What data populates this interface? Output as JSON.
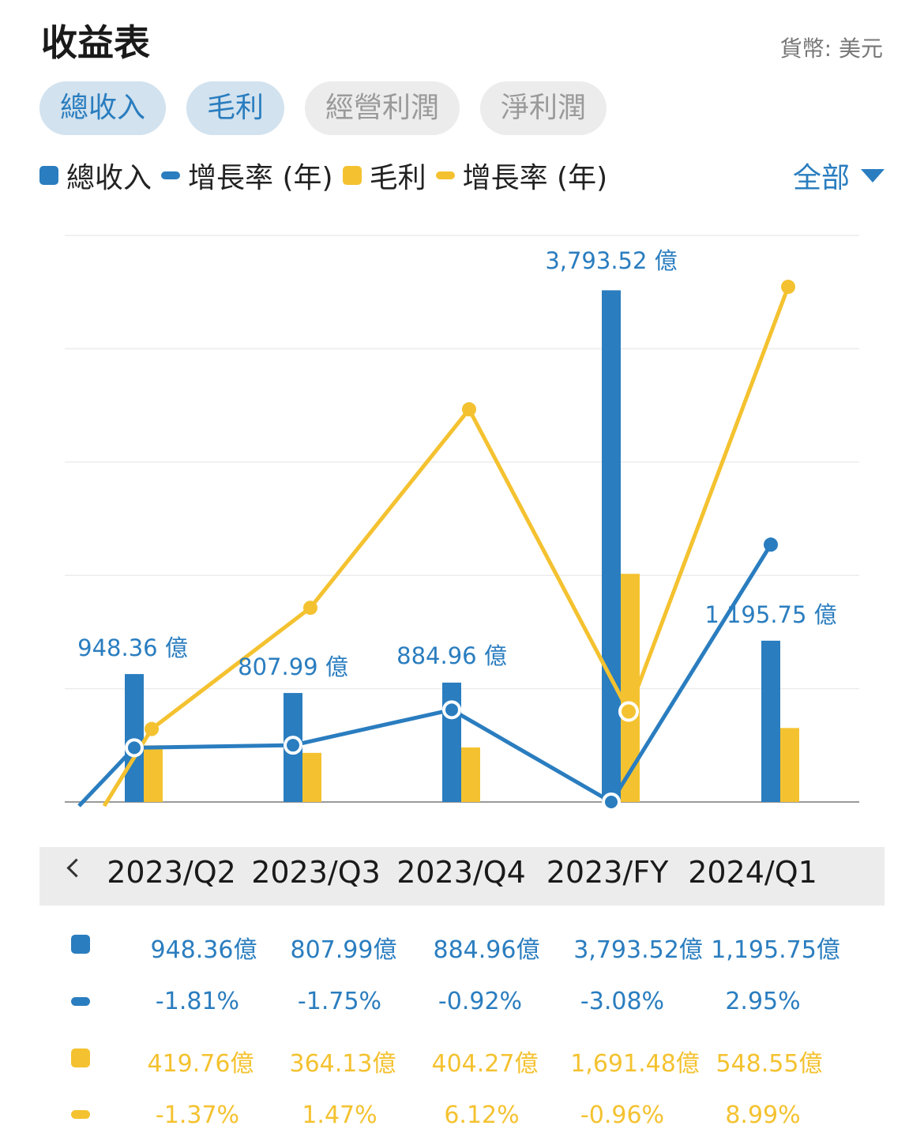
{
  "header": {
    "title": "收益表",
    "currency": "貨幣: 美元"
  },
  "tabs": [
    {
      "label": "總收入",
      "active": true
    },
    {
      "label": "毛利",
      "active": true
    },
    {
      "label": "經營利潤",
      "active": false
    },
    {
      "label": "淨利潤",
      "active": false
    }
  ],
  "legend": [
    {
      "label": "總收入",
      "shape": "square",
      "color": "#2a7dbf"
    },
    {
      "label": "增長率 (年)",
      "shape": "dash",
      "color": "#2a7dbf"
    },
    {
      "label": "毛利",
      "shape": "square",
      "color": "#f4c230"
    },
    {
      "label": "增長率 (年)",
      "shape": "dash",
      "color": "#f4c230"
    }
  ],
  "filter": {
    "label": "全部"
  },
  "periods": [
    "2023/Q2",
    "2023/Q3",
    "2023/Q4",
    "2023/FY",
    "2024/Q1"
  ],
  "table": {
    "revenue": [
      "948.36億",
      "807.99億",
      "884.96億",
      "3,793.52億",
      "1,195.75億"
    ],
    "revenue_growth": [
      "-1.81%",
      "-1.75%",
      "-0.92%",
      "-3.08%",
      "2.95%"
    ],
    "gross_profit": [
      "419.76億",
      "364.13億",
      "404.27億",
      "1,691.48億",
      "548.55億"
    ],
    "gross_profit_growth": [
      "-1.37%",
      "1.47%",
      "6.12%",
      "-0.96%",
      "8.99%"
    ]
  },
  "chart_data": {
    "type": "bar",
    "categories": [
      "2023/Q2",
      "2023/Q3",
      "2023/Q4",
      "2023/FY",
      "2024/Q1"
    ],
    "series": [
      {
        "name": "總收入",
        "kind": "bar",
        "color": "#2a7dbf",
        "unit": "億",
        "values": [
          948.36,
          807.99,
          884.96,
          3793.52,
          1195.75
        ]
      },
      {
        "name": "毛利",
        "kind": "bar",
        "color": "#f4c230",
        "unit": "億",
        "values": [
          419.76,
          364.13,
          404.27,
          1691.48,
          548.55
        ]
      },
      {
        "name": "增長率 (年)",
        "kind": "line",
        "color": "#2a7dbf",
        "unit": "%",
        "values": [
          -1.81,
          -1.75,
          -0.92,
          -3.08,
          2.95
        ]
      },
      {
        "name": "增長率 (年)",
        "kind": "line",
        "color": "#f4c230",
        "unit": "%",
        "values": [
          -1.37,
          1.47,
          6.12,
          -0.96,
          8.99
        ]
      }
    ],
    "bar_labels": [
      "948.36 億",
      "807.99 億",
      "884.96 億",
      "3,793.52 億",
      "1,195.75 億"
    ],
    "bar_ylim": [
      0,
      4200
    ],
    "line_ylim": [
      -3.08,
      8.99
    ],
    "grid": true,
    "legend_position": "top"
  }
}
